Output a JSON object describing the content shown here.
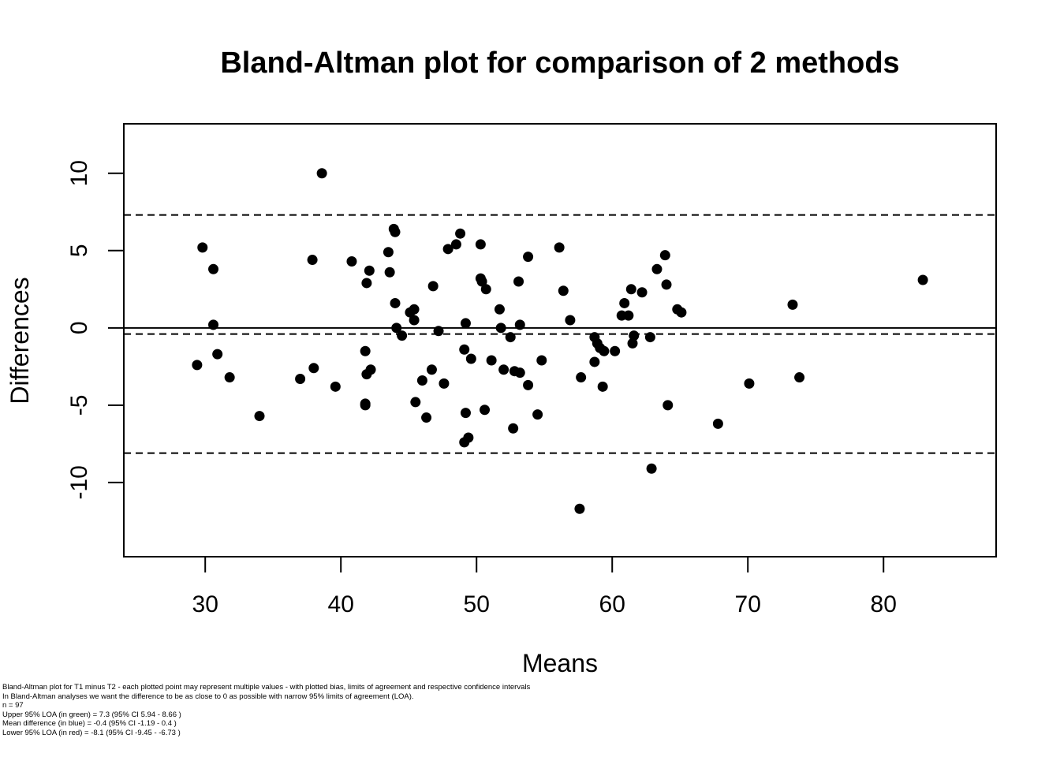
{
  "chart_data": {
    "type": "scatter",
    "title": "Bland-Altman plot for comparison of 2 methods",
    "xlabel": "Means",
    "ylabel": "Differences",
    "xlim": [
      24,
      88.3
    ],
    "ylim": [
      -14.8,
      13.2
    ],
    "xticks": [
      30,
      40,
      50,
      60,
      70,
      80
    ],
    "yticks": [
      -10,
      -5,
      0,
      5,
      10
    ],
    "grid": false,
    "reference_lines": {
      "zero": 0,
      "upper_loa": 7.3,
      "mean_difference": -0.4,
      "lower_loa": -8.1
    },
    "points": [
      [
        29.4,
        -2.4
      ],
      [
        29.8,
        5.2
      ],
      [
        30.6,
        3.8
      ],
      [
        30.6,
        0.2
      ],
      [
        30.9,
        -1.7
      ],
      [
        31.8,
        -3.2
      ],
      [
        34.0,
        -5.7
      ],
      [
        37.0,
        -3.3
      ],
      [
        37.9,
        4.4
      ],
      [
        38.0,
        -2.6
      ],
      [
        38.6,
        10.0
      ],
      [
        39.6,
        -3.8
      ],
      [
        40.8,
        4.3
      ],
      [
        41.8,
        -1.5
      ],
      [
        41.8,
        -4.9
      ],
      [
        41.8,
        -5.0
      ],
      [
        41.9,
        -3.0
      ],
      [
        41.9,
        2.9
      ],
      [
        42.1,
        3.7
      ],
      [
        42.2,
        -2.7
      ],
      [
        43.5,
        4.9
      ],
      [
        43.6,
        3.6
      ],
      [
        43.9,
        6.4
      ],
      [
        44.0,
        6.2
      ],
      [
        44.0,
        1.6
      ],
      [
        44.1,
        0.0
      ],
      [
        44.5,
        -0.5
      ],
      [
        45.1,
        1.0
      ],
      [
        45.4,
        1.2
      ],
      [
        45.4,
        0.5
      ],
      [
        45.5,
        -4.8
      ],
      [
        46.0,
        -3.4
      ],
      [
        46.3,
        -5.8
      ],
      [
        46.7,
        -2.7
      ],
      [
        46.8,
        2.7
      ],
      [
        47.2,
        -0.2
      ],
      [
        47.6,
        -3.6
      ],
      [
        47.9,
        5.1
      ],
      [
        48.5,
        5.4
      ],
      [
        48.8,
        6.1
      ],
      [
        49.1,
        -1.4
      ],
      [
        49.1,
        -7.4
      ],
      [
        49.2,
        -5.5
      ],
      [
        49.2,
        0.3
      ],
      [
        49.4,
        -7.1
      ],
      [
        49.6,
        -2.0
      ],
      [
        50.3,
        5.4
      ],
      [
        50.3,
        3.2
      ],
      [
        50.4,
        3.0
      ],
      [
        50.6,
        -5.3
      ],
      [
        50.7,
        2.5
      ],
      [
        51.1,
        -2.1
      ],
      [
        51.7,
        1.2
      ],
      [
        51.8,
        0.0
      ],
      [
        52.0,
        -2.7
      ],
      [
        52.5,
        -0.6
      ],
      [
        52.7,
        -6.5
      ],
      [
        52.8,
        -2.8
      ],
      [
        53.1,
        3.0
      ],
      [
        53.2,
        -2.9
      ],
      [
        53.2,
        0.2
      ],
      [
        53.8,
        4.6
      ],
      [
        53.8,
        -3.7
      ],
      [
        54.5,
        -5.6
      ],
      [
        54.8,
        -2.1
      ],
      [
        56.1,
        5.2
      ],
      [
        56.4,
        2.4
      ],
      [
        56.9,
        0.5
      ],
      [
        57.6,
        -11.7
      ],
      [
        57.7,
        -3.2
      ],
      [
        58.7,
        -0.6
      ],
      [
        58.7,
        -2.2
      ],
      [
        58.9,
        -1.0
      ],
      [
        59.1,
        -1.3
      ],
      [
        59.3,
        -3.8
      ],
      [
        59.4,
        -1.5
      ],
      [
        60.2,
        -1.5
      ],
      [
        60.7,
        0.8
      ],
      [
        60.9,
        1.6
      ],
      [
        61.2,
        0.8
      ],
      [
        61.4,
        2.5
      ],
      [
        61.5,
        -1.0
      ],
      [
        61.6,
        -0.5
      ],
      [
        62.2,
        2.3
      ],
      [
        62.8,
        -0.6
      ],
      [
        62.9,
        -9.1
      ],
      [
        63.3,
        3.8
      ],
      [
        63.9,
        4.7
      ],
      [
        64.0,
        2.8
      ],
      [
        64.1,
        -5.0
      ],
      [
        64.8,
        1.2
      ],
      [
        65.1,
        1.0
      ],
      [
        67.8,
        -6.2
      ],
      [
        70.1,
        -3.6
      ],
      [
        73.3,
        1.5
      ],
      [
        73.8,
        -3.2
      ],
      [
        82.9,
        3.1
      ]
    ]
  },
  "footnote": {
    "line1": "Bland-Altman plot for  T1 minus T2 - each plotted point may represent multiple values - with plotted bias, limits of agreement and respective confidence intervals",
    "line2": "In Bland-Altman analyses we want the difference to be as close to 0 as possible with narrow 95% limits of agreement (LOA).",
    "line3": "n = 97",
    "line4": "Upper 95% LOA (in green) = 7.3 (95% CI 5.94 - 8.66 )",
    "line5": "Mean difference (in blue) = -0.4 (95% CI -1.19 - 0.4 )",
    "line6": "Lower 95% LOA (in red) = -8.1 (95% CI -9.45 - -6.73 )"
  }
}
